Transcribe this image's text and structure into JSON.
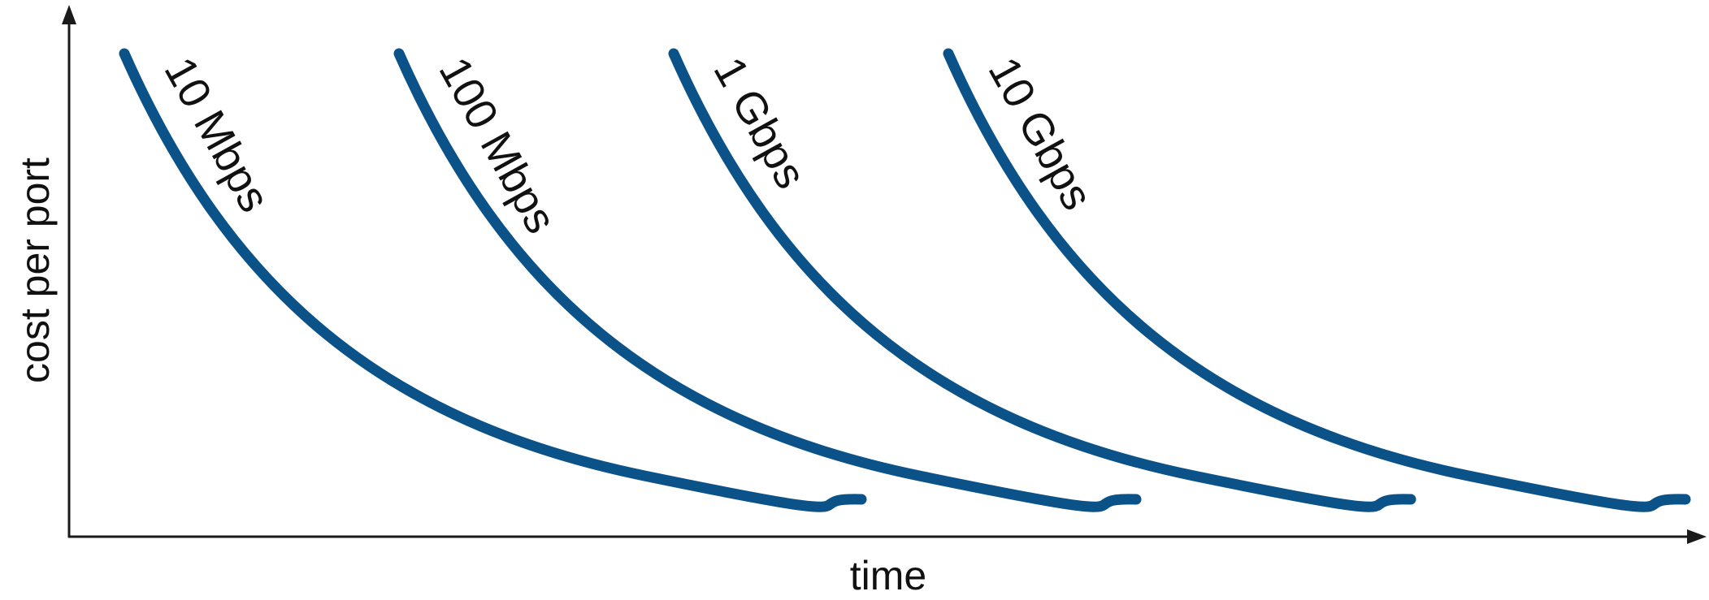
{
  "chart_data": {
    "type": "line",
    "title": "",
    "xlabel": "time",
    "ylabel": "cost per port",
    "grid": false,
    "legend": "inline labels along each curve",
    "line_color": "#0b5289",
    "series": [
      {
        "name": "10 Mbps"
      },
      {
        "name": "100 Mbps"
      },
      {
        "name": "1 Gbps"
      },
      {
        "name": "10 Gbps"
      }
    ]
  }
}
